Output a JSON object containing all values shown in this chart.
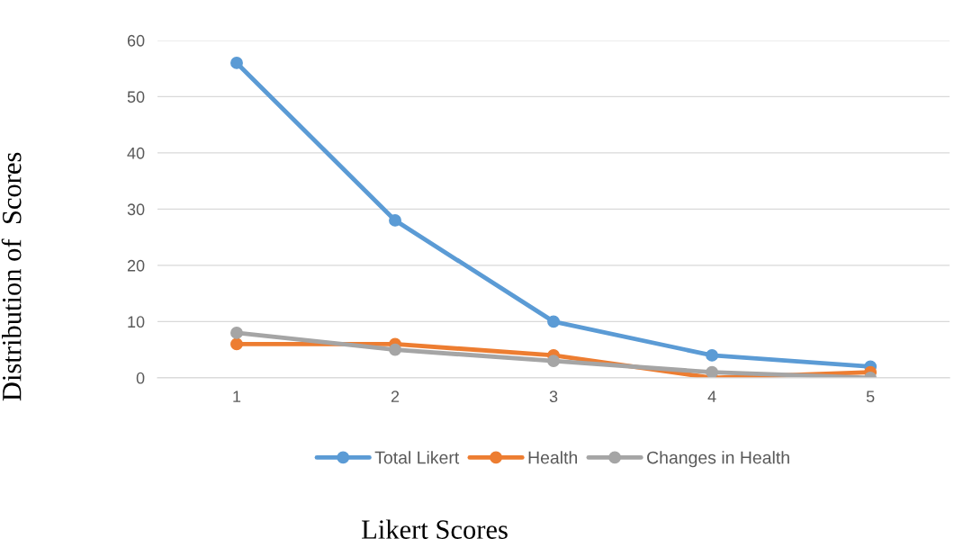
{
  "chart_data": {
    "type": "line",
    "xlabel": "Likert Scores",
    "ylabel": "Distribution of  Scores",
    "categories": [
      "1",
      "2",
      "3",
      "4",
      "5"
    ],
    "series": [
      {
        "name": "Total Likert",
        "color": "#5b9bd5",
        "values": [
          56,
          28,
          10,
          4,
          2
        ]
      },
      {
        "name": "Health",
        "color": "#ed7d31",
        "values": [
          6,
          6,
          4,
          0,
          1
        ]
      },
      {
        "name": "Changes in Health",
        "color": "#a5a5a5",
        "values": [
          8,
          5,
          3,
          1,
          0
        ]
      }
    ],
    "ylim": [
      0,
      60
    ],
    "yticks": [
      0,
      10,
      20,
      30,
      40,
      50,
      60
    ],
    "grid": "y",
    "legend": "bottom",
    "marker": "circle",
    "line_style": "solid"
  }
}
